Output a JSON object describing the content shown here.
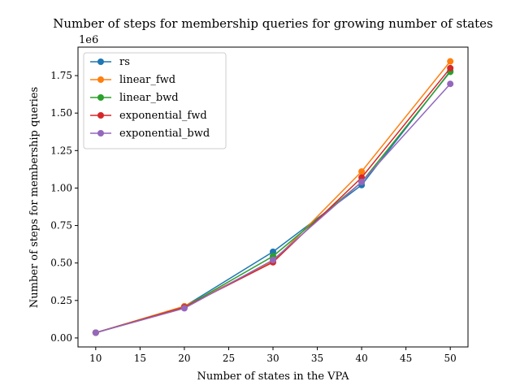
{
  "chart_data": {
    "type": "line",
    "title": "Number of steps for membership queries for growing number of states",
    "xlabel": "Number of states in the VPA",
    "ylabel": "Number of steps for membership queries",
    "y_offset_label": "1e6",
    "x": [
      10,
      20,
      30,
      40,
      50
    ],
    "xlim": [
      8,
      52
    ],
    "ylim": [
      -60000,
      1940000
    ],
    "x_ticks": [
      10,
      15,
      20,
      25,
      30,
      35,
      40,
      45,
      50
    ],
    "x_tick_labels": [
      "10",
      "15",
      "20",
      "25",
      "30",
      "35",
      "40",
      "45",
      "50"
    ],
    "y_ticks": [
      0,
      250000,
      500000,
      750000,
      1000000,
      1250000,
      1500000,
      1750000
    ],
    "y_tick_labels": [
      "0.00",
      "0.25",
      "0.50",
      "0.75",
      "1.00",
      "1.25",
      "1.50",
      "1.75"
    ],
    "grid": false,
    "legend_position": "top-left",
    "series": [
      {
        "name": "rs",
        "color": "#1f77b4",
        "values": [
          35000,
          210000,
          575000,
          1020000,
          1780000
        ]
      },
      {
        "name": "linear_fwd",
        "color": "#ff7f0e",
        "values": [
          35000,
          212000,
          510000,
          1110000,
          1845000
        ]
      },
      {
        "name": "linear_bwd",
        "color": "#2ca02c",
        "values": [
          35000,
          205000,
          545000,
          1040000,
          1775000
        ]
      },
      {
        "name": "exponential_fwd",
        "color": "#d62728",
        "values": [
          35000,
          205000,
          505000,
          1070000,
          1800000
        ]
      },
      {
        "name": "exponential_bwd",
        "color": "#9467bd",
        "values": [
          35000,
          198000,
          520000,
          1040000,
          1695000
        ]
      }
    ]
  }
}
